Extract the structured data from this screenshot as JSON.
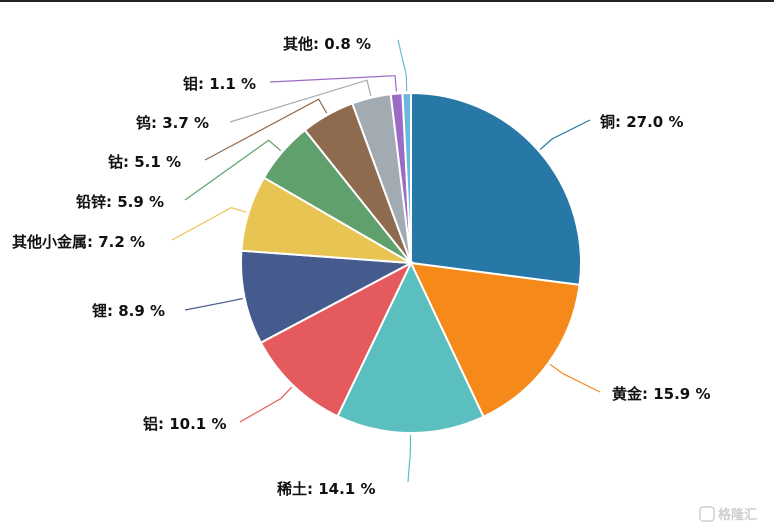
{
  "chart_data": {
    "type": "pie",
    "title": "",
    "slices": [
      {
        "label": "铜",
        "value": 27.0,
        "text": "铜: 27.0 %",
        "color": "#2878a7"
      },
      {
        "label": "黄金",
        "value": 15.9,
        "text": "黄金: 15.9 %",
        "color": "#f5891a"
      },
      {
        "label": "稀土",
        "value": 14.1,
        "text": "稀土: 14.1 %",
        "color": "#5bbfc0"
      },
      {
        "label": "铝",
        "value": 10.1,
        "text": "铝: 10.1 %",
        "color": "#e55b5d"
      },
      {
        "label": "锂",
        "value": 8.9,
        "text": "锂: 8.9 %",
        "color": "#455a8d"
      },
      {
        "label": "其他小金属",
        "value": 7.2,
        "text": "其他小金属: 7.2 %",
        "color": "#e8c452"
      },
      {
        "label": "铅锌",
        "value": 5.9,
        "text": "铅锌: 5.9 %",
        "color": "#5fa06c"
      },
      {
        "label": "钴",
        "value": 5.1,
        "text": "钴: 5.1 %",
        "color": "#8e6a4f"
      },
      {
        "label": "钨",
        "value": 3.7,
        "text": "钨: 3.7 %",
        "color": "#a2aab2"
      },
      {
        "label": "钼",
        "value": 1.1,
        "text": "钼: 1.1 %",
        "color": "#9c6bc5"
      },
      {
        "label": "其他",
        "value": 0.8,
        "text": "其他: 0.8 %",
        "color": "#6ab8dc"
      }
    ]
  },
  "watermark": {
    "text": "格隆汇"
  }
}
